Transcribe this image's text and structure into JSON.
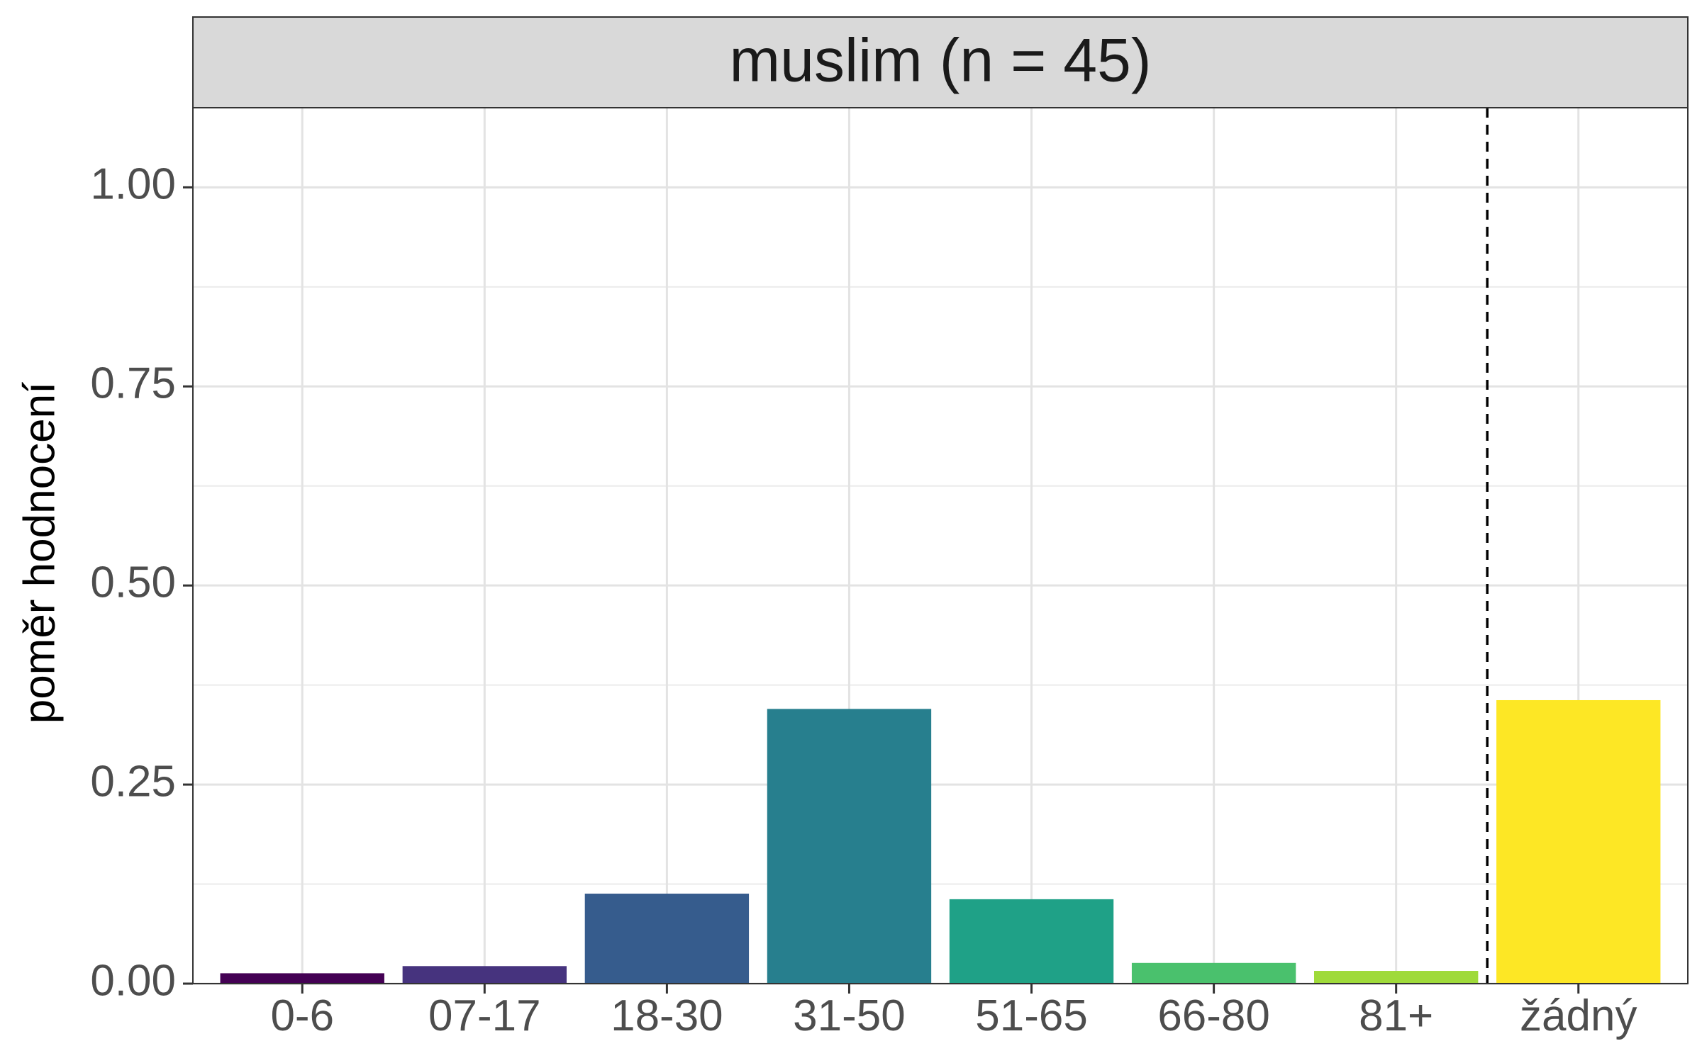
{
  "chart_data": {
    "type": "bar",
    "facet_title": "muslim (n = 45)",
    "categories": [
      "0-6",
      "07-17",
      "18-30",
      "31-50",
      "51-65",
      "66-80",
      "81+",
      "žádný"
    ],
    "values": [
      0.013,
      0.022,
      0.113,
      0.345,
      0.106,
      0.026,
      0.016,
      0.356
    ],
    "colors": [
      "#440154",
      "#46337E",
      "#365C8D",
      "#277F8E",
      "#1FA187",
      "#4AC16D",
      "#9FDA3A",
      "#FDE725"
    ],
    "title": "",
    "xlabel": "",
    "ylabel": "poměr hodnocení",
    "ylim": [
      0,
      1.1
    ],
    "yticks": [
      0,
      0.25,
      0.5,
      0.75,
      1.0
    ],
    "ytick_labels": [
      "0.00",
      "0.25",
      "0.50",
      "0.75",
      "1.00"
    ],
    "reference_line": {
      "after_category": "81+",
      "style": "dashed"
    },
    "grid": true,
    "legend": "none"
  }
}
